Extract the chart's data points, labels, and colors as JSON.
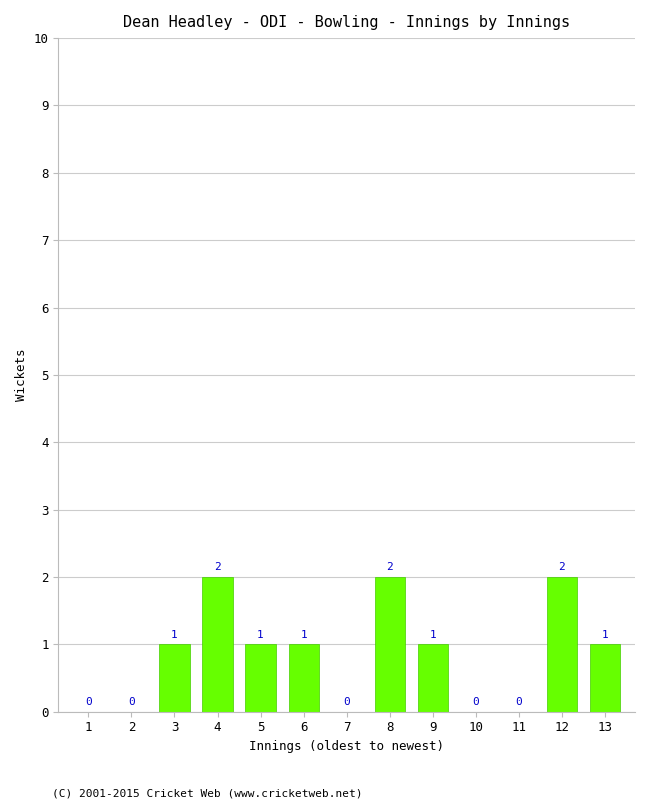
{
  "title": "Dean Headley - ODI - Bowling - Innings by Innings",
  "xlabel": "Innings (oldest to newest)",
  "ylabel": "Wickets",
  "categories": [
    1,
    2,
    3,
    4,
    5,
    6,
    7,
    8,
    9,
    10,
    11,
    12,
    13
  ],
  "values": [
    0,
    0,
    1,
    2,
    1,
    1,
    0,
    2,
    1,
    0,
    0,
    2,
    1
  ],
  "bar_color": "#66ff00",
  "bar_edge_color": "#44cc00",
  "label_color": "#0000cc",
  "background_color": "#ffffff",
  "grid_color": "#cccccc",
  "ylim": [
    0,
    10
  ],
  "yticks": [
    0,
    1,
    2,
    3,
    4,
    5,
    6,
    7,
    8,
    9,
    10
  ],
  "footer": "(C) 2001-2015 Cricket Web (www.cricketweb.net)",
  "title_fontsize": 11,
  "axis_label_fontsize": 9,
  "tick_fontsize": 9,
  "label_fontsize": 8,
  "footer_fontsize": 8
}
